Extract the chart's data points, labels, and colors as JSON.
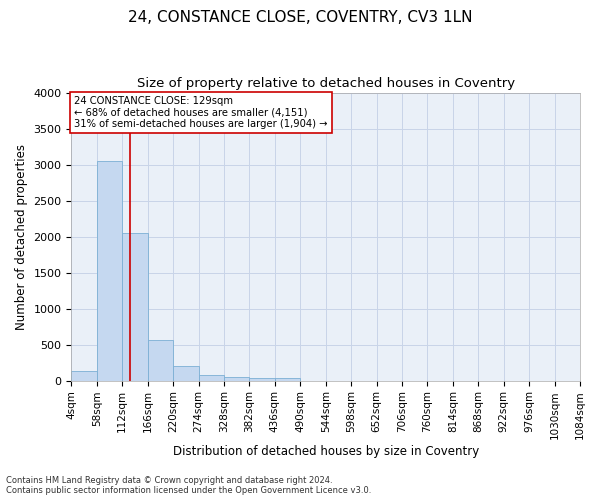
{
  "title": "24, CONSTANCE CLOSE, COVENTRY, CV3 1LN",
  "subtitle": "Size of property relative to detached houses in Coventry",
  "xlabel": "Distribution of detached houses by size in Coventry",
  "ylabel": "Number of detached properties",
  "footer_line1": "Contains HM Land Registry data © Crown copyright and database right 2024.",
  "footer_line2": "Contains public sector information licensed under the Open Government Licence v3.0.",
  "bar_color": "#C5D8F0",
  "bar_edge_color": "#7BAFD4",
  "grid_color": "#C8D4E8",
  "background_color": "#EAF0F8",
  "vline_x": 129,
  "vline_color": "#CC0000",
  "annotation_text": "24 CONSTANCE CLOSE: 129sqm\n← 68% of detached houses are smaller (4,151)\n31% of semi-detached houses are larger (1,904) →",
  "annotation_box_color": "#CC0000",
  "bin_edges": [
    4,
    58,
    112,
    166,
    220,
    274,
    328,
    382,
    436,
    490,
    544,
    598,
    652,
    706,
    760,
    814,
    868,
    922,
    976,
    1030,
    1084
  ],
  "bin_counts": [
    140,
    3060,
    2060,
    570,
    200,
    80,
    55,
    40,
    30,
    0,
    0,
    0,
    0,
    0,
    0,
    0,
    0,
    0,
    0,
    0
  ],
  "ylim": [
    0,
    4000
  ],
  "xlim": [
    4,
    1084
  ],
  "yticks": [
    0,
    500,
    1000,
    1500,
    2000,
    2500,
    3000,
    3500,
    4000
  ],
  "title_fontsize": 11,
  "subtitle_fontsize": 9.5,
  "tick_fontsize": 7.5,
  "ylabel_fontsize": 8.5,
  "xlabel_fontsize": 8.5,
  "footer_fontsize": 6.0
}
